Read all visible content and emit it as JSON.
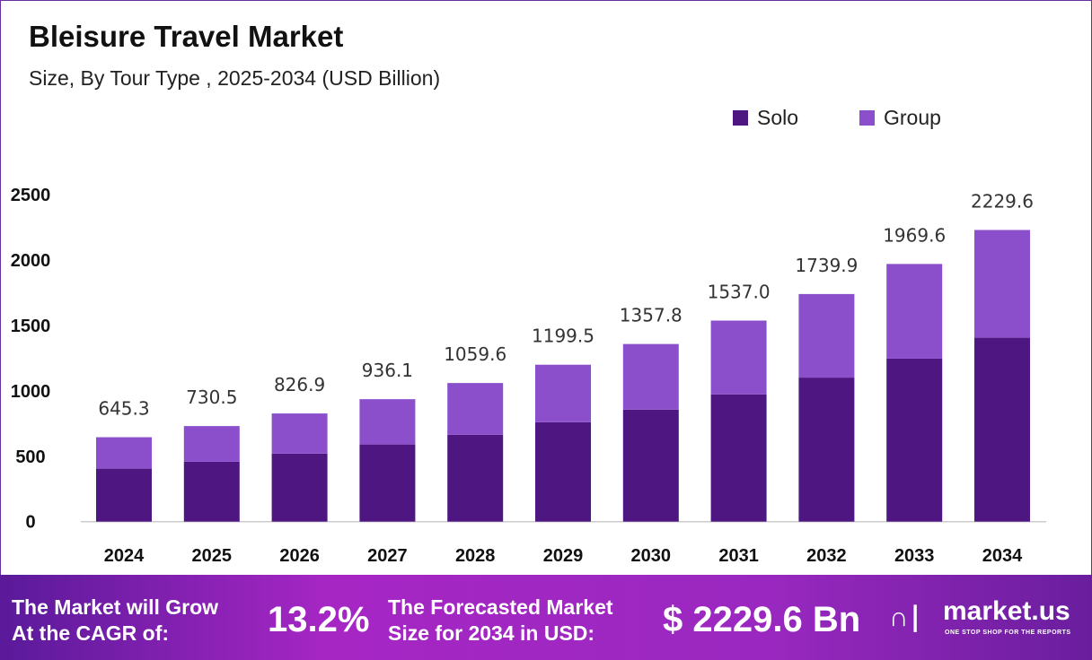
{
  "title": "Bleisure Travel Market",
  "subtitle": "Size, By Tour Type , 2025-2034 (USD Billion)",
  "chart_data": {
    "type": "bar",
    "stacked": true,
    "categories": [
      "2024",
      "2025",
      "2026",
      "2027",
      "2028",
      "2029",
      "2030",
      "2031",
      "2032",
      "2033",
      "2034"
    ],
    "series": [
      {
        "name": "Solo",
        "color": "#4e1680",
        "values": [
          405,
          458,
          520,
          590,
          664,
          760,
          856,
          973,
          1101,
          1246,
          1406
        ]
      },
      {
        "name": "Group",
        "color": "#8b4fcc",
        "values": [
          240.3,
          272.5,
          306.9,
          346.1,
          395.6,
          439.5,
          501.8,
          564.0,
          638.9,
          723.6,
          823.6
        ]
      }
    ],
    "totals": [
      "645.3",
      "730.5",
      "826.9",
      "936.1",
      "1059.6",
      "1199.5",
      "1357.8",
      "1537.0",
      "1739.9",
      "1969.6",
      "2229.6"
    ],
    "yticks": [
      0,
      500,
      1000,
      1500,
      2000,
      2500
    ],
    "ylim": [
      0,
      2500
    ],
    "grid": false,
    "legend": "top-right"
  },
  "footer": {
    "cagr_text_1": "The Market will Grow",
    "cagr_text_2": "At the CAGR of:",
    "cagr_value": "13.2%",
    "forecast_text_1": "The Forecasted Market",
    "forecast_text_2": "Size for 2034 in USD:",
    "forecast_value": "$ 2229.6 Bn",
    "logo_name": "market.us",
    "logo_tagline": "ONE STOP SHOP FOR THE REPORTS"
  }
}
